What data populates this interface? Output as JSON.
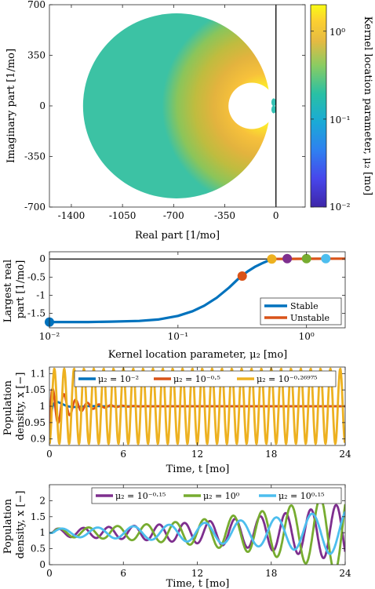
{
  "chart_data": [
    {
      "id": "spectrum",
      "type": "scatter",
      "xlabel": "Real part [1/mo]",
      "ylabel": "Imaginary part [1/mo]",
      "xlim": [
        -1550,
        200
      ],
      "ylim": [
        -700,
        700
      ],
      "xticks": [
        -1400,
        -1050,
        -700,
        -350,
        0
      ],
      "xtick_labels": [
        "-1400",
        "-1050",
        "-700",
        "-350",
        "0"
      ],
      "yticks": [
        -700,
        -350,
        0,
        350,
        700
      ],
      "ytick_labels": [
        "-700",
        "-350",
        "0",
        "350",
        "700"
      ],
      "colorbar": {
        "label": "Kernel location parameter, μ₂ [mo]",
        "scale": "log",
        "range": [
          0.01,
          2
        ],
        "ticks": [
          0.01,
          0.1,
          1
        ],
        "tick_labels": [
          "10⁻²",
          "10⁻¹",
          "10⁰"
        ],
        "colormap": "parula"
      },
      "region": {
        "outer_disk": {
          "center": [
            -680,
            0
          ],
          "radius": 640
        },
        "inner_hole": {
          "center": [
            -165,
            0
          ],
          "radius": 160
        }
      }
    },
    {
      "id": "largest-real-part",
      "type": "line",
      "xscale": "log",
      "xlabel": "Kernel location parameter, μ₂ [mo]",
      "ylabel": "Largest real part [1/mo]",
      "ylabel_lines": [
        "Largest real",
        "part [1/mo]"
      ],
      "xlim": [
        0.01,
        2
      ],
      "ylim": [
        -1.9,
        0.2
      ],
      "xticks": [
        0.01,
        0.1,
        1
      ],
      "xtick_labels": [
        "10⁻²",
        "10⁻¹",
        "10⁰"
      ],
      "yticks": [
        0,
        -0.5,
        -1,
        -1.5
      ],
      "ytick_labels": [
        "0",
        "-0.5",
        "-1",
        "-1.5"
      ],
      "legend": {
        "placement": "bottom-right",
        "entries": [
          "Stable",
          "Unstable"
        ]
      },
      "series": [
        {
          "name": "Stable",
          "color": "#0072BD",
          "x": [
            0.01,
            0.02,
            0.03,
            0.05,
            0.07,
            0.1,
            0.13,
            0.16,
            0.2,
            0.25,
            0.3,
            0.35,
            0.4,
            0.45,
            0.5,
            0.537
          ],
          "y": [
            -1.74,
            -1.74,
            -1.73,
            -1.71,
            -1.67,
            -1.57,
            -1.44,
            -1.29,
            -1.07,
            -0.79,
            -0.52,
            -0.34,
            -0.21,
            -0.12,
            -0.05,
            0
          ]
        },
        {
          "name": "Unstable",
          "color": "#D95319",
          "x": [
            0.537,
            0.7,
            0.9,
            1.2,
            1.6,
            2.0
          ],
          "y": [
            0,
            0.003,
            0.006,
            0.008,
            0.01,
            0.01
          ]
        }
      ],
      "markers": [
        {
          "x": 0.01,
          "y": -1.74,
          "color": "#0072BD"
        },
        {
          "x": 0.316,
          "y": -0.47,
          "color": "#D95319"
        },
        {
          "x": 0.537,
          "y": 0,
          "color": "#EDB120"
        },
        {
          "x": 0.708,
          "y": 0.01,
          "color": "#7E2F8E"
        },
        {
          "x": 1.0,
          "y": 0.01,
          "color": "#77AC30"
        },
        {
          "x": 1.413,
          "y": 0.01,
          "color": "#4DBEEE"
        }
      ]
    },
    {
      "id": "sim-stable",
      "type": "line",
      "xlabel": "Time, t [mo]",
      "ylabel": "Population density, x [−]",
      "ylabel_lines": [
        "Population",
        "density, x [−]"
      ],
      "xlim": [
        0,
        24
      ],
      "ylim": [
        0.88,
        1.12
      ],
      "xticks": [
        0,
        6,
        12,
        18,
        24
      ],
      "xtick_labels": [
        "0",
        "6",
        "12",
        "18",
        "24"
      ],
      "yticks": [
        0.9,
        0.95,
        1,
        1.05,
        1.1
      ],
      "ytick_labels": [
        "0.9",
        "0.95",
        "1",
        "1.05",
        "1.1"
      ],
      "legend": {
        "placement": "top",
        "orientation": "horizontal"
      },
      "series": [
        {
          "name": "μ₂ = 10⁻²",
          "color": "#0072BD",
          "mu": 0.01,
          "amp": 0.03,
          "decay": 1.2,
          "freq": 3.0
        },
        {
          "name": "μ₂ = 10⁻⁰·⁵",
          "color": "#D95319",
          "mu": 0.316,
          "amp": 0.08,
          "decay": 0.65,
          "freq": 0.95
        },
        {
          "name": "μ₂ = 10⁻⁰·²⁶⁹⁷⁵",
          "color": "#EDB120",
          "mu": 0.537,
          "amp": 0.115,
          "decay": 0,
          "freq": 0.8
        }
      ]
    },
    {
      "id": "sim-unstable",
      "type": "line",
      "xlabel": "Time, t [mo]",
      "ylabel": "Population density, x [−]",
      "ylabel_lines": [
        "Population",
        "density, x [−]"
      ],
      "xlim": [
        0,
        24
      ],
      "ylim": [
        0,
        2.5
      ],
      "xticks": [
        0,
        6,
        12,
        18,
        24
      ],
      "xtick_labels": [
        "0",
        "6",
        "12",
        "18",
        "24"
      ],
      "yticks": [
        0,
        0.5,
        1,
        1.5,
        2
      ],
      "ytick_labels": [
        "0",
        "0.5",
        "1",
        "1.5",
        "2"
      ],
      "legend": {
        "placement": "top",
        "orientation": "horizontal"
      },
      "series": [
        {
          "name": "μ₂ = 10⁻⁰·¹⁵",
          "color": "#7E2F8E",
          "mu": 0.708,
          "period": 2.05,
          "growth": 0.085,
          "amp0": 0.12
        },
        {
          "name": "μ₂ = 10⁰",
          "color": "#77AC30",
          "mu": 1.0,
          "period": 2.35,
          "growth": 0.1,
          "amp0": 0.12
        },
        {
          "name": "μ₂ = 10⁰·¹⁵",
          "color": "#4DBEEE",
          "mu": 1.413,
          "period": 2.9,
          "growth": 0.075,
          "amp0": 0.12
        }
      ]
    }
  ]
}
